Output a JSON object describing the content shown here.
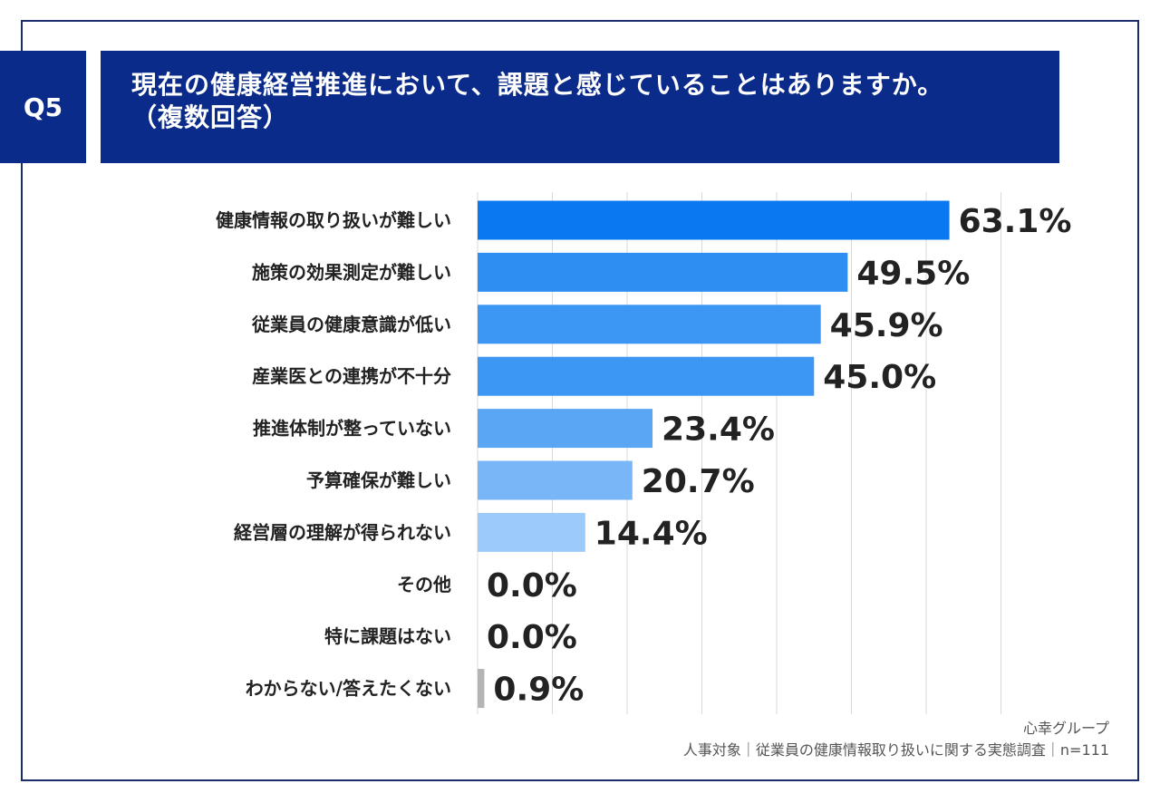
{
  "badge": "Q5",
  "title_line1": "現在の健康経営推進において、課題と感じていることはありますか。",
  "title_line2": "（複数回答）",
  "footer": {
    "org": "心幸グループ",
    "survey": "人事対象｜従業員の健康情報取り扱いに関する実態調査｜n=111"
  },
  "chart_data": {
    "type": "bar",
    "orientation": "horizontal",
    "categories": [
      "健康情報の取り扱いが難しい",
      "施策の効果測定が難しい",
      "従業員の健康意識が低い",
      "産業医との連携が不十分",
      "推進体制が整っていない",
      "予算確保が難しい",
      "経営層の理解が得られない",
      "その他",
      "特に課題はない",
      "わからない/答えたくない"
    ],
    "values": [
      63.1,
      49.5,
      45.9,
      45.0,
      23.4,
      20.7,
      14.4,
      0.0,
      0.0,
      0.9
    ],
    "value_labels": [
      "63.1%",
      "49.5%",
      "45.9%",
      "45.0%",
      "23.4%",
      "20.7%",
      "14.4%",
      "0.0%",
      "0.0%",
      "0.9%"
    ],
    "colors": [
      "#0a78f0",
      "#2e8ef2",
      "#3c96f3",
      "#3c96f3",
      "#5aa6f5",
      "#78b6f7",
      "#9ccaf9",
      "#bcdcfb",
      "#bcdcfb",
      "#b4b4b4"
    ],
    "xlim": [
      0,
      70
    ],
    "grid": true
  }
}
